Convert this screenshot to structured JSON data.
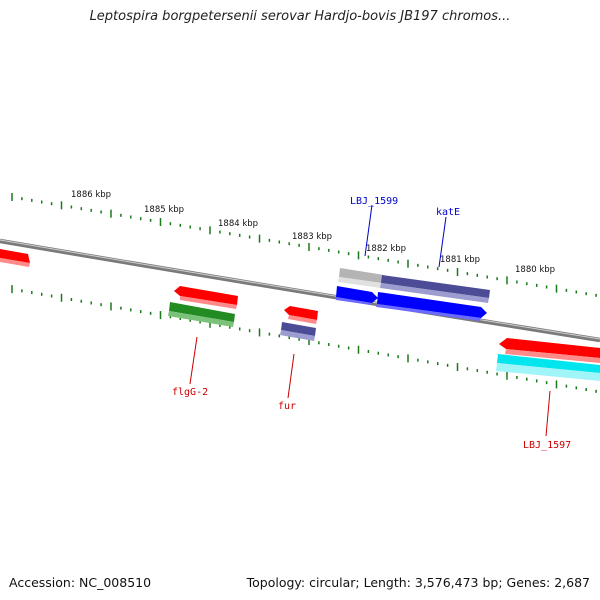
{
  "title": "Leptospira borgpetersenii serovar Hardjo-bovis JB197 chromos...",
  "footer": {
    "accession": "Accession: NC_008510",
    "summary": "Topology: circular; Length: 3,576,473 bp; Genes: 2,687"
  },
  "colors": {
    "backbone": "#7a7a7a",
    "ticks": "#1a7a1a",
    "label_forward": "#0000cc",
    "label_reverse": "#cc0000"
  },
  "scale_labels": [
    "1886 kbp",
    "1885 kbp",
    "1884 kbp",
    "1883 kbp",
    "1882 kbp",
    "1881 kbp",
    "1880 kbp"
  ],
  "features": [
    {
      "id": "offscreen-left-red",
      "color": "#ff0000"
    },
    {
      "id": "flgG-2-red",
      "color": "#ff0000"
    },
    {
      "id": "flgG-2-green",
      "color": "#228b22"
    },
    {
      "id": "fur-red",
      "color": "#ff0000"
    },
    {
      "id": "fur-slate",
      "color": "#4b4b96"
    },
    {
      "id": "LBJ_1599-grey",
      "color": "#b4b4b4"
    },
    {
      "id": "katE-slate",
      "color": "#4b4b96"
    },
    {
      "id": "LBJ_1599-blue",
      "color": "#0000ff"
    },
    {
      "id": "katE-blue",
      "color": "#0000ff"
    },
    {
      "id": "LBJ_1597-red",
      "color": "#ff0000"
    },
    {
      "id": "LBJ_1597-cyan",
      "color": "#00e5ee"
    }
  ],
  "gene_labels": [
    {
      "text": "LBJ_1599",
      "strand": "forward"
    },
    {
      "text": "katE",
      "strand": "forward"
    },
    {
      "text": "flgG-2",
      "strand": "reverse"
    },
    {
      "text": "fur",
      "strand": "reverse"
    },
    {
      "text": "LBJ_1597",
      "strand": "reverse"
    }
  ]
}
